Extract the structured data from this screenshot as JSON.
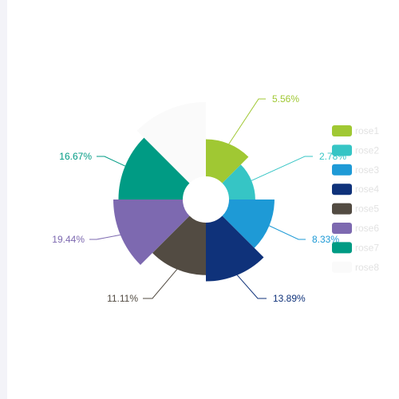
{
  "chart_data": {
    "type": "nightingale-rose",
    "series": [
      {
        "name": "rose1",
        "value": 5.56,
        "label": "5.56%",
        "color": "#a0c833"
      },
      {
        "name": "rose2",
        "value": 2.78,
        "label": "2.78%",
        "color": "#36c5c5"
      },
      {
        "name": "rose3",
        "value": 8.33,
        "label": "8.33%",
        "color": "#1e9ad6"
      },
      {
        "name": "rose4",
        "value": 13.89,
        "label": "13.89%",
        "color": "#0f327a"
      },
      {
        "name": "rose5",
        "value": 11.11,
        "label": "11.11%",
        "color": "#524b42"
      },
      {
        "name": "rose6",
        "value": 19.44,
        "label": "19.44%",
        "color": "#7d69b0"
      },
      {
        "name": "rose7",
        "value": 16.67,
        "label": "16.67%",
        "color": "#009b84"
      },
      {
        "name": "rose8",
        "value": 22.22,
        "label": "",
        "color": "#fafafa"
      }
    ],
    "legend_position": "right"
  }
}
